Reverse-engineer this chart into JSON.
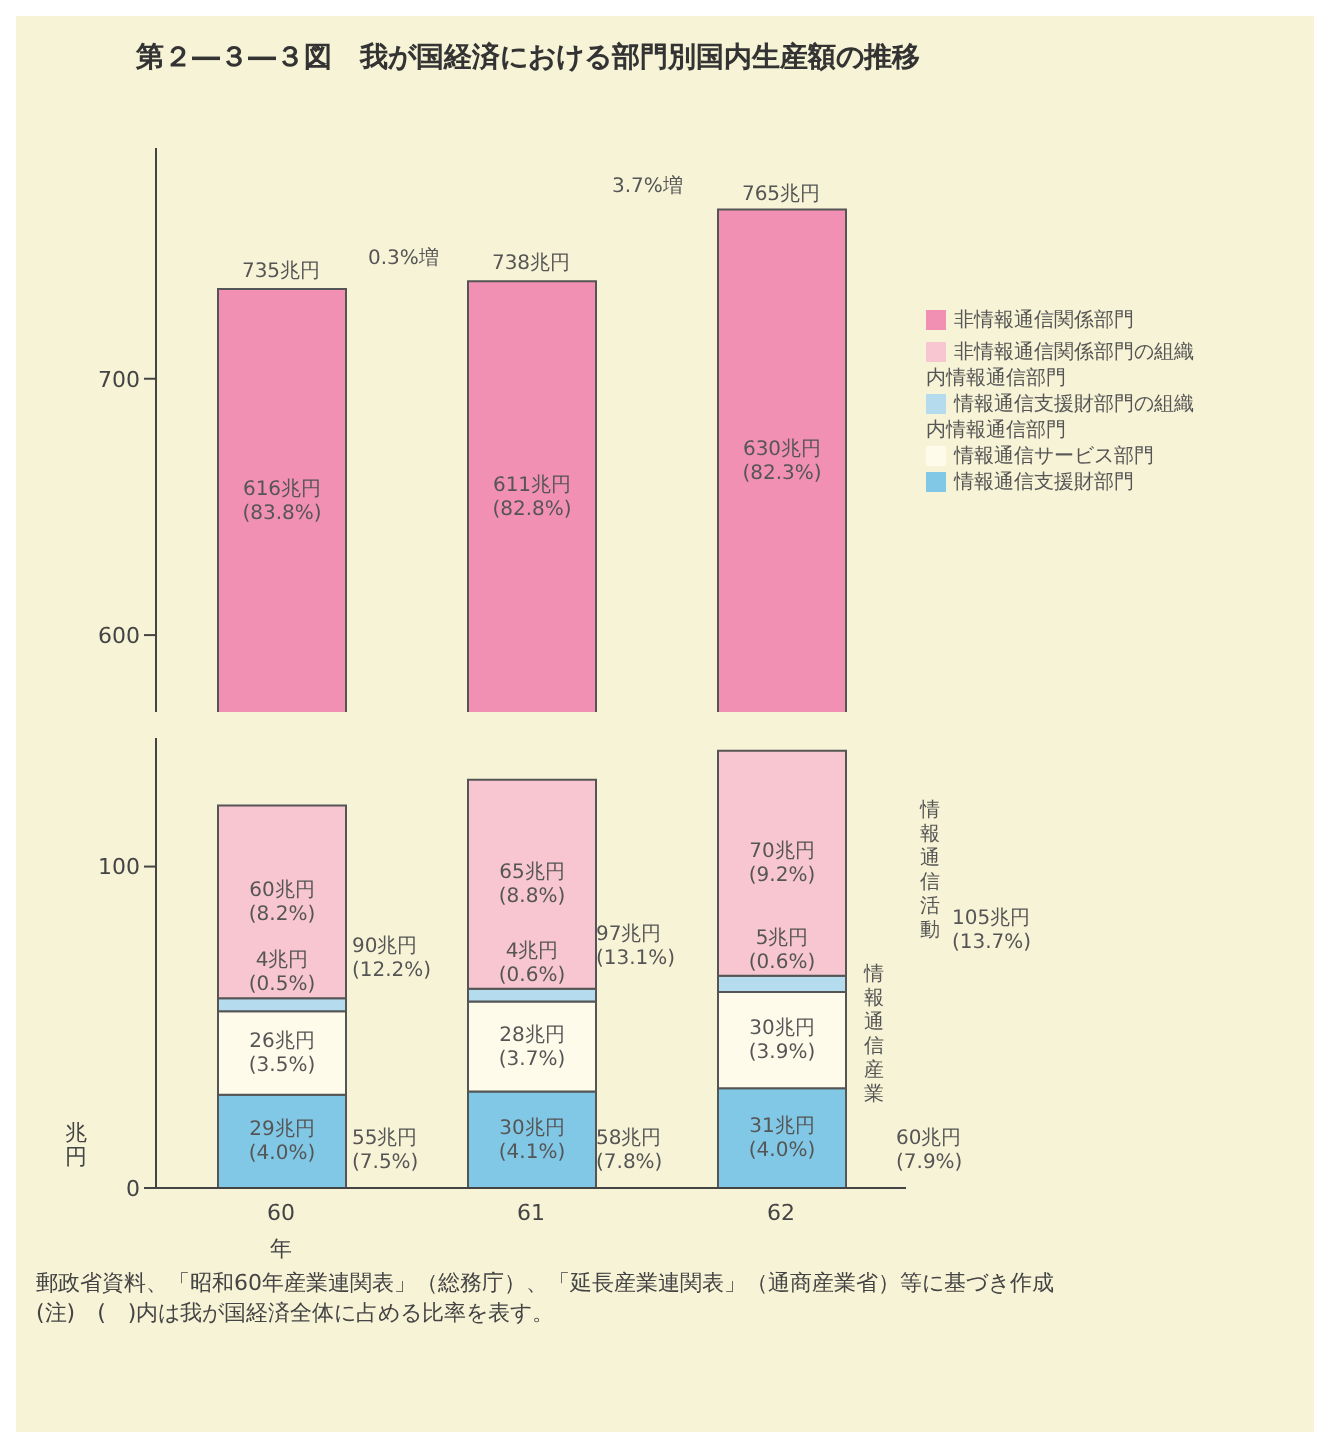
{
  "chart_data": [
    {
      "type": "bar",
      "title": "第２―３―３図　我が国経済における部門別国内生産額の推移",
      "categories": [
        "60",
        "61",
        "62"
      ],
      "ylim": [
        570,
        790
      ],
      "yticks": [
        600,
        700
      ],
      "tick_labels": "y",
      "legend": "right",
      "series": [
        {
          "name": "非情報通信関係部門",
          "color": "#f290b4",
          "values": [
            616,
            611,
            630
          ],
          "base": [
            119,
            127,
            136
          ],
          "value_labels": [
            "616兆円 (83.8%)",
            "611兆円 (82.8%)",
            "630兆円 (82.3%)"
          ]
        }
      ],
      "annotations": [
        {
          "text": "735兆円",
          "x": "60",
          "y": 735
        },
        {
          "text": "738兆円",
          "x": "61",
          "y": 738
        },
        {
          "text": "765兆円",
          "x": "62",
          "y": 765
        },
        "0.3%増",
        "3.7%増"
      ]
    },
    {
      "type": "bar",
      "categories": [
        "60",
        "61",
        "62"
      ],
      "stacked": true,
      "ylim": [
        0,
        140
      ],
      "yticks": [
        0,
        100
      ],
      "xlabel": "年",
      "ylabel": "兆円",
      "legend": "right",
      "series": [
        {
          "name": "情報通信支援財部門",
          "color": "#80c8e6",
          "values": [
            29,
            30,
            31
          ],
          "value_labels": [
            "29兆円 (4.0%)",
            "30兆円 (4.1%)",
            "31兆円 (4.0%)"
          ]
        },
        {
          "name": "情報通信サービス部門",
          "color": "#fffbea",
          "values": [
            26,
            28,
            30
          ],
          "value_labels": [
            "26兆円 (3.5%)",
            "28兆円 (3.7%)",
            "30兆円 (3.9%)"
          ]
        },
        {
          "name": "情報通信支援財部門の組織内情報通信部門",
          "color": "#b4dcee",
          "values": [
            4,
            4,
            5
          ],
          "value_labels": [
            "4兆円 (0.5%)",
            "4兆円 (0.6%)",
            "5兆円 (0.6%)"
          ]
        },
        {
          "name": "非情報通信関係部門の組織内情報通信部門",
          "color": "#f8c6d0",
          "values": [
            60,
            65,
            70
          ],
          "value_labels": [
            "60兆円 (8.2%)",
            "65兆円 (8.8%)",
            "70兆円 (9.2%)"
          ]
        }
      ],
      "annotations": [
        "90兆円 (12.2%)",
        "55兆円 (7.5%)",
        "97兆円 (13.1%)",
        "58兆円 (7.8%)",
        "105兆円 (13.7%)",
        "60兆円 (7.9%)",
        "情報通信活動",
        "情報通信産業",
        "郵政省資料、「昭和60年産業連関表」（総務庁）、「延長産業連関表」（通商産業省）等に基づき作成",
        "(注)　(　)内は我が国経済全体に占める比率を表す。"
      ]
    }
  ]
}
